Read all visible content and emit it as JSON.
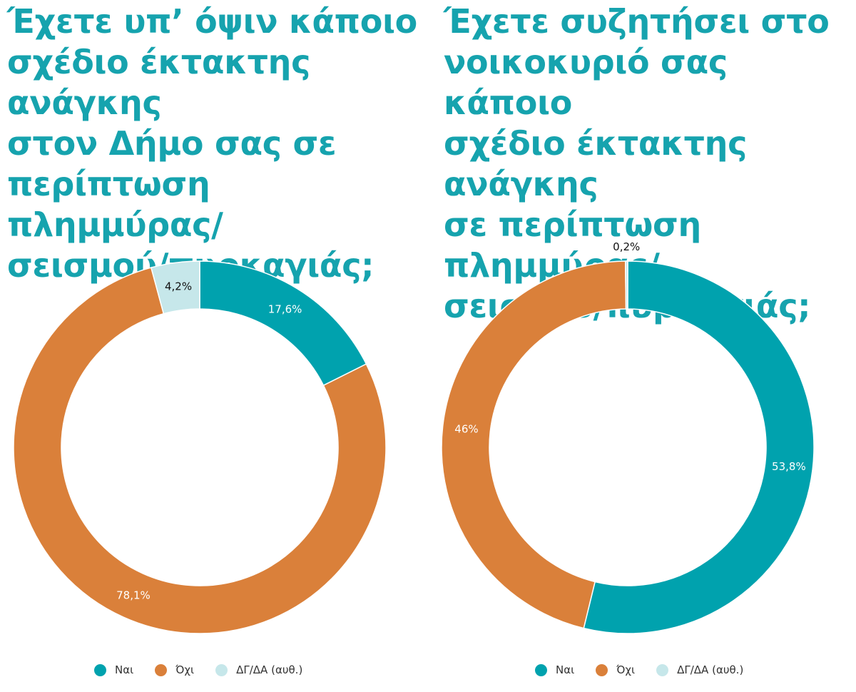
{
  "colors": {
    "title": "#16a3ae",
    "label_dark": "#111111",
    "label_light": "#ffffff"
  },
  "chart_data": [
    {
      "type": "pie",
      "title": "Έχετε υπ’ όψιν κάποιο\nσχέδιο έκτακτης ανάγκης\nστον Δήμο σας σε\nπερίπτωση πλημμύρας/\nσεισμού/πυρκαγιάς;",
      "slices": [
        {
          "label": "Ναι",
          "value": 17.6,
          "display": "17,6%",
          "color": "#00a2ae"
        },
        {
          "label": "Όχι",
          "value": 78.1,
          "display": "78,1%",
          "color": "#da803a"
        },
        {
          "label": "ΔΓ/ΔΑ (αυθ.)",
          "value": 4.2,
          "display": "4,2%",
          "color": "#c6e7ea"
        }
      ],
      "legend": [
        "Ναι",
        "Όχι",
        "ΔΓ/ΔΑ (αυθ.)"
      ],
      "legend_position": "bottom"
    },
    {
      "type": "pie",
      "title": "Έχετε συζητήσει στο\nνοικοκυριό σας κάποιο\nσχέδιο έκτακτης ανάγκης\nσε περίπτωση πλημμύρας/\nσεισμού/πυρκαγιάς;",
      "slices": [
        {
          "label": "Ναι",
          "value": 53.8,
          "display": "53,8%",
          "color": "#00a2ae"
        },
        {
          "label": "Όχι",
          "value": 46,
          "display": "46%",
          "color": "#da803a"
        },
        {
          "label": "ΔΓ/ΔΑ (αυθ.)",
          "value": 0.2,
          "display": "0,2%",
          "color": "#c6e7ea"
        }
      ],
      "legend": [
        "Ναι",
        "Όχι",
        "ΔΓ/ΔΑ (αυθ.)"
      ],
      "legend_position": "bottom"
    }
  ]
}
